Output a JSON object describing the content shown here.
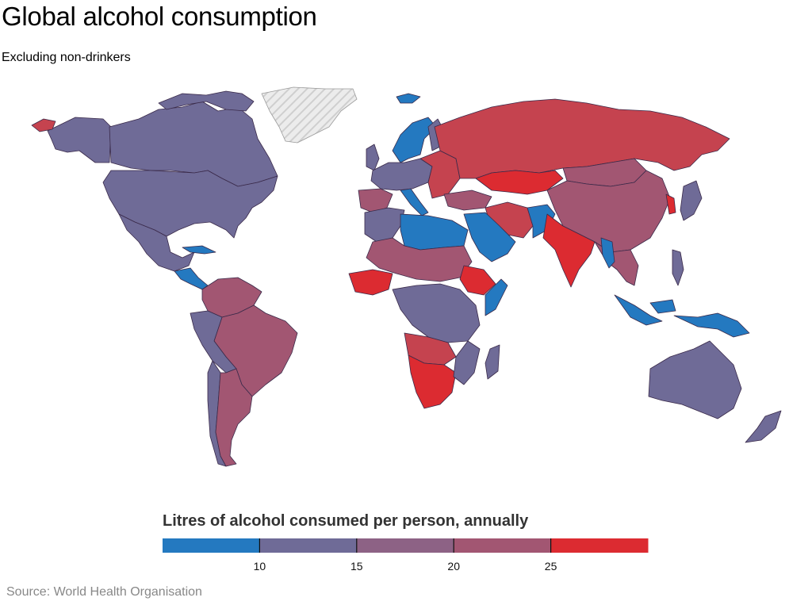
{
  "title": "Global alcohol consumption",
  "subtitle": "Excluding non-drinkers",
  "legend": {
    "title": "Litres of alcohol consumed per person, annually",
    "range": [
      5,
      30
    ],
    "ticks": [
      "10",
      "15",
      "20",
      "25"
    ],
    "colors": [
      "#2479c0",
      "#6f6b97",
      "#8d6285",
      "#a25672",
      "#c5434f",
      "#dc2b31"
    ]
  },
  "source": "Source: World Health Organisation",
  "colors": {
    "blue": "#2479c0",
    "purple": "#6f6b97",
    "mauve": "#9a5a78",
    "rose": "#b84e5e",
    "red": "#dc2b31",
    "no_data": "#e4e4e4",
    "border": "#3a2a4a"
  }
}
